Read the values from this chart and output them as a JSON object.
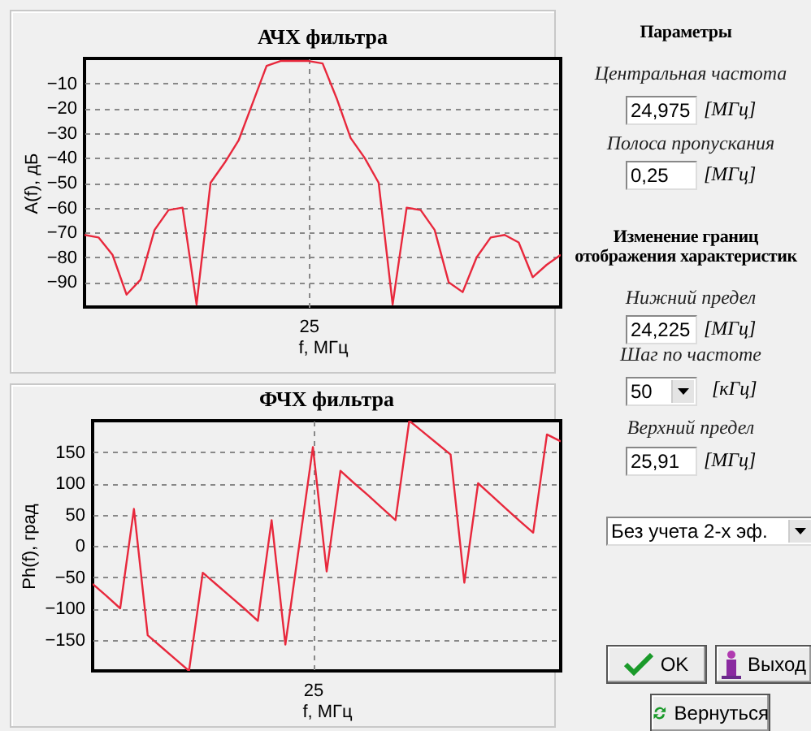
{
  "chart_data": [
    {
      "type": "line",
      "title": "АЧХ фильтра",
      "xlabel": "f, МГц",
      "ylabel": "A(f), дБ",
      "categories": [
        null,
        null,
        null,
        null,
        null,
        null,
        null,
        null,
        null,
        null,
        null,
        null,
        null,
        null,
        null,
        null,
        "25",
        null,
        null,
        null,
        null,
        null,
        null,
        null,
        null,
        null,
        null,
        null,
        null,
        null,
        null,
        null,
        null,
        null,
        null
      ],
      "values": [
        -71,
        -72,
        -79,
        -95,
        -89,
        -69,
        -61,
        -60,
        -99,
        -50,
        -42,
        -33,
        -18,
        -3,
        -1,
        -1,
        -1,
        -2,
        -16,
        -32,
        -40,
        -50,
        -99,
        -60,
        -61,
        -69,
        -90,
        -94,
        -80,
        -72,
        -71,
        -74,
        -88,
        -83,
        -79
      ],
      "color": "#e8283c",
      "ylim": [
        -100,
        0
      ],
      "yticks": [
        -90,
        -80,
        -70,
        -60,
        -50,
        -40,
        -30,
        -20,
        -10
      ],
      "grid": true
    },
    {
      "type": "line",
      "title": "ФЧХ фильтра",
      "xlabel": "f, МГц",
      "ylabel": "Ph(f), град",
      "categories": [
        null,
        null,
        null,
        null,
        null,
        null,
        null,
        null,
        null,
        null,
        null,
        null,
        null,
        null,
        null,
        null,
        "25",
        null,
        null,
        null,
        null,
        null,
        null,
        null,
        null,
        null,
        null,
        null,
        null,
        null,
        null,
        null,
        null,
        null,
        null
      ],
      "values": [
        -61,
        -80,
        -100,
        59,
        -143,
        -162,
        -181,
        -200,
        -43,
        -62,
        -81,
        -100,
        -120,
        41,
        -158,
        0,
        158,
        -41,
        120,
        100,
        81,
        61,
        41,
        200,
        182,
        164,
        146,
        -59,
        100,
        80,
        60,
        40,
        21,
        178,
        167
      ],
      "color": "#e8283c",
      "ylim": [
        -200,
        200
      ],
      "yticks": [
        -150,
        -100,
        -50,
        0,
        50,
        100,
        150
      ],
      "grid": true
    },
    {
      "type": "other",
      "title": "Параметры",
      "annotations": [
        "Центральная частота",
        "24,975",
        "[МГц]",
        "Полоса пропускания",
        "0,25",
        "[МГц]",
        "Изменение границ отображения характеристик",
        "Нижний предел",
        "24,225",
        "[МГц]",
        "Шаг по частоте",
        "50",
        "[кГц]",
        "Верхний предел",
        "25,91",
        "[МГц]",
        "Без учета 2-х эф.",
        "OK",
        "Выход",
        "Вернуться"
      ]
    }
  ]
}
